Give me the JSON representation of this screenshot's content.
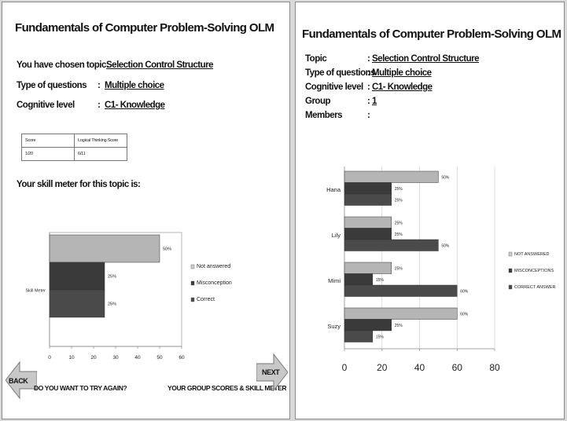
{
  "left": {
    "title": "Fundamentals of Computer Problem-Solving OLM",
    "topic_label": "You have chosen topic:",
    "topic_value": "Selection Control Structure",
    "type_label": "Type of questions",
    "type_value": "Multiple choice",
    "cognitive_label": "Cognitive level",
    "cognitive_value": "C1- Knowledge",
    "score_table": {
      "headers": [
        "Score",
        "Logical Thinking Score"
      ],
      "values": [
        "1/20",
        "6/11"
      ]
    },
    "meter_heading": "Your skill meter for this topic is:",
    "back_label": "BACK",
    "next_label": "NEXT",
    "try_again": "DO YOU WANT TO TRY AGAIN?",
    "group_link": "YOUR GROUP SCORES & SKILL METER"
  },
  "right": {
    "title": "Fundamentals of Computer Problem-Solving OLM",
    "topic_label": "Topic",
    "topic_value": "Selection Control Structure",
    "type_label": "Type of questions",
    "type_value": "Multiple choice",
    "cognitive_label": "Cognitive level",
    "cognitive_value": "C1- Knowledge",
    "group_label": "Group",
    "group_value": "1",
    "members_label": "Members",
    "members_value": ""
  },
  "colors": {
    "not_answered": "#b5b5b5",
    "misconception": "#3a3a3a",
    "correct": "#4a4a4a"
  },
  "chart_data": [
    {
      "type": "bar",
      "orientation": "horizontal",
      "categories": [
        "Skill Meter"
      ],
      "series": [
        {
          "name": "Not answered",
          "values": [
            50
          ],
          "labels": [
            "50%"
          ]
        },
        {
          "name": "Misconception",
          "values": [
            25
          ],
          "labels": [
            "25%"
          ]
        },
        {
          "name": "Correct",
          "values": [
            25
          ],
          "labels": [
            "25%"
          ]
        }
      ],
      "xticks": [
        "0",
        "10",
        "20",
        "30",
        "40",
        "50",
        "60"
      ],
      "xlim": [
        0,
        60
      ],
      "legend": "right"
    },
    {
      "type": "bar",
      "orientation": "horizontal",
      "categories": [
        "Hana",
        "Lily",
        "Mimi",
        "Suzy"
      ],
      "series": [
        {
          "name": "NOT ANSWERED",
          "values": [
            50,
            25,
            25,
            60
          ],
          "labels": [
            "50%",
            "25%",
            "25%",
            "60%"
          ]
        },
        {
          "name": "MISCONCEPTIONS",
          "values": [
            25,
            25,
            15,
            25
          ],
          "labels": [
            "25%",
            "25%",
            "15%",
            "25%"
          ]
        },
        {
          "name": "CORRECT ANSWER",
          "values": [
            25,
            50,
            60,
            15
          ],
          "labels": [
            "25%",
            "50%",
            "60%",
            "15%"
          ]
        }
      ],
      "xticks": [
        "0",
        "20",
        "40",
        "60",
        "80"
      ],
      "xlim": [
        0,
        80
      ],
      "legend": "right"
    }
  ]
}
